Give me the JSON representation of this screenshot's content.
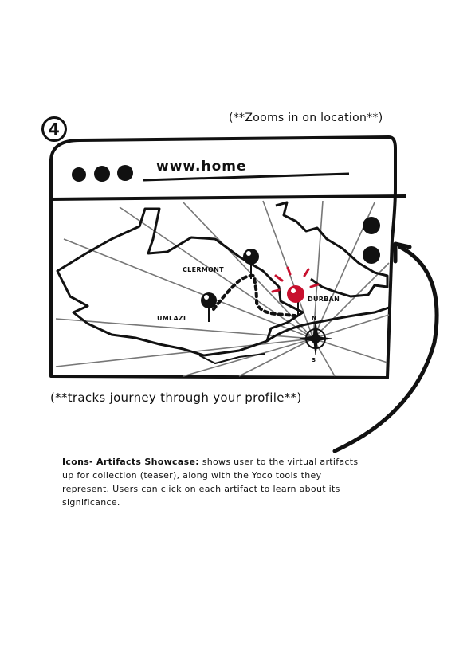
{
  "step_number": "4",
  "zoom_note": "(**Zooms in on location**)",
  "track_note": "(**tracks journey through your profile**)",
  "browser": {
    "url_text": "www.home"
  },
  "map": {
    "labels": {
      "clermont": "CLERMONT",
      "umlazi": "UMLAZI",
      "durban": "DURBAN"
    },
    "compass": {
      "north": "N",
      "south": "S"
    },
    "pin_color": "#111111",
    "active_pin_color": "#c8102e"
  },
  "description": {
    "title": "Icons- Artifacts Showcase:",
    "body": "shows user to the virtual artifacts up for collection (teaser), along with the Yoco tools they represent. Users can click on each artifact to learn about its significance."
  }
}
